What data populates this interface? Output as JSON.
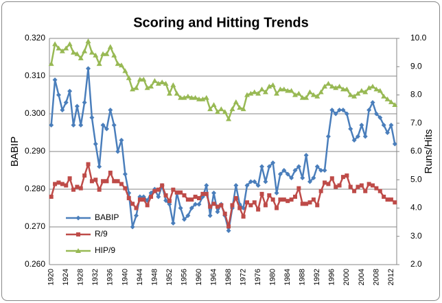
{
  "chart_data": {
    "type": "line",
    "title": "Scoring and Hitting Trends",
    "y_label": "BABIP",
    "y2_label": "Runs/Hits",
    "grid": true,
    "legend": "lower left",
    "categories": [
      1920,
      null,
      null,
      null,
      1924,
      null,
      null,
      null,
      1928,
      null,
      null,
      null,
      1932,
      null,
      null,
      null,
      1936,
      null,
      null,
      null,
      1940,
      null,
      null,
      null,
      1944,
      null,
      null,
      null,
      1948,
      null,
      null,
      null,
      1952,
      null,
      null,
      null,
      1956,
      null,
      null,
      null,
      1960,
      null,
      null,
      null,
      1964,
      null,
      null,
      null,
      1968,
      null,
      null,
      null,
      1972,
      null,
      null,
      null,
      1976,
      null,
      null,
      null,
      1980,
      null,
      null,
      null,
      1984,
      null,
      null,
      null,
      1988,
      null,
      null,
      null,
      1992,
      null,
      null,
      null,
      1996,
      null,
      null,
      null,
      2000,
      null,
      null,
      null,
      2004,
      null,
      null,
      null,
      2008,
      null,
      null,
      null,
      2012,
      null
    ],
    "ylim": [
      0.26,
      0.32
    ],
    "yticks": [
      {
        "value": 0.26,
        "label": "0.260"
      },
      {
        "value": 0.27,
        "label": "0.270"
      },
      {
        "value": 0.28,
        "label": "0.280"
      },
      {
        "value": 0.29,
        "label": "0.290"
      },
      {
        "value": 0.3,
        "label": "0.300"
      },
      {
        "value": 0.31,
        "label": "0.310"
      },
      {
        "value": 0.32,
        "label": "0.320"
      }
    ],
    "y2lim": [
      2,
      10
    ],
    "y2ticks": [
      {
        "value": 2,
        "label": "2.0"
      },
      {
        "value": 3,
        "label": "3.0"
      },
      {
        "value": 4,
        "label": "4.0"
      },
      {
        "value": 5,
        "label": "5.0"
      },
      {
        "value": 6,
        "label": "6.0"
      },
      {
        "value": 7,
        "label": "7.0"
      },
      {
        "value": 8,
        "label": "8.0"
      },
      {
        "value": 9,
        "label": "9.0"
      },
      {
        "value": 10,
        "label": "10.0"
      }
    ],
    "series": [
      {
        "name": "BABIP",
        "color": "#4a7ebb",
        "marker": "diamond",
        "values": [
          0.297,
          0.309,
          0.305,
          0.301,
          0.303,
          0.306,
          0.297,
          0.302,
          0.297,
          0.303,
          0.312,
          0.299,
          0.292,
          0.286,
          0.297,
          0.296,
          0.301,
          0.297,
          0.29,
          0.293,
          0.284,
          0.279,
          0.27,
          0.273,
          0.278,
          0.278,
          0.277,
          0.279,
          0.28,
          0.278,
          0.281,
          0.277,
          0.276,
          0.271,
          0.279,
          0.275,
          0.272,
          0.273,
          0.275,
          0.276,
          0.276,
          0.278,
          0.281,
          0.273,
          0.279,
          0.274,
          0.276,
          0.273,
          0.269,
          0.275,
          0.281,
          0.276,
          0.275,
          0.281,
          0.282,
          0.282,
          0.281,
          0.286,
          0.282,
          0.286,
          0.287,
          0.279,
          0.284,
          0.285,
          0.284,
          0.283,
          0.285,
          0.286,
          0.283,
          0.289,
          0.282,
          0.283,
          0.286,
          0.285,
          0.285,
          0.294,
          0.301,
          0.3,
          0.301,
          0.301,
          0.3,
          0.296,
          0.293,
          0.294,
          0.297,
          0.294,
          0.301,
          0.303,
          0.3,
          0.299,
          0.297,
          0.295,
          0.297,
          0.292
        ]
      },
      {
        "name": "R/9",
        "color": "#be4b48",
        "marker": "square",
        "axis": "y2",
        "values": [
          4.4,
          4.85,
          4.9,
          4.85,
          4.8,
          5.05,
          4.65,
          4.75,
          4.7,
          5.15,
          5.55,
          4.95,
          5.0,
          4.65,
          4.95,
          4.95,
          5.25,
          4.95,
          4.95,
          4.85,
          4.7,
          4.35,
          4.15,
          4.0,
          4.3,
          4.3,
          4.1,
          4.4,
          4.6,
          4.65,
          4.8,
          4.45,
          4.25,
          4.65,
          4.55,
          4.55,
          4.45,
          4.3,
          4.3,
          4.4,
          4.35,
          4.5,
          4.5,
          4.05,
          4.15,
          4.05,
          4.1,
          3.8,
          3.35,
          4.1,
          4.35,
          4.0,
          3.7,
          4.2,
          4.1,
          4.2,
          3.95,
          4.5,
          4.1,
          4.45,
          4.3,
          4.0,
          4.3,
          4.3,
          4.25,
          4.3,
          4.4,
          4.7,
          4.15,
          4.15,
          4.2,
          4.3,
          4.1,
          4.6,
          4.9,
          4.85,
          5.05,
          4.75,
          4.8,
          5.1,
          5.15,
          4.75,
          4.6,
          4.75,
          4.8,
          4.6,
          4.85,
          4.8,
          4.7,
          4.6,
          4.4,
          4.3,
          4.3,
          4.2
        ]
      },
      {
        "name": "HIP/9",
        "color": "#98b954",
        "marker": "triangle",
        "axis": "y2",
        "values": [
          9.1,
          9.8,
          9.65,
          9.55,
          9.65,
          9.8,
          9.5,
          9.45,
          9.3,
          9.55,
          9.9,
          9.5,
          9.4,
          9.1,
          9.45,
          9.45,
          9.7,
          9.4,
          9.1,
          9.05,
          8.85,
          8.6,
          8.2,
          8.25,
          8.55,
          8.55,
          8.25,
          8.3,
          8.5,
          8.4,
          8.45,
          8.4,
          8.05,
          8.35,
          8.05,
          7.9,
          7.9,
          7.95,
          7.9,
          7.9,
          7.85,
          7.85,
          7.9,
          7.5,
          7.65,
          7.4,
          7.5,
          7.4,
          7.15,
          7.5,
          7.75,
          7.55,
          7.5,
          8.0,
          8.05,
          8.1,
          8.05,
          8.2,
          8.1,
          8.3,
          8.35,
          8.05,
          8.2,
          8.2,
          8.15,
          8.15,
          8.0,
          8.05,
          7.9,
          7.9,
          8.1,
          8.0,
          7.95,
          8.1,
          8.3,
          8.4,
          8.3,
          8.25,
          8.3,
          8.2,
          8.2,
          8.0,
          7.95,
          8.05,
          8.15,
          8.1,
          8.25,
          8.3,
          8.2,
          8.15,
          7.95,
          7.85,
          7.75,
          7.65
        ]
      }
    ]
  }
}
